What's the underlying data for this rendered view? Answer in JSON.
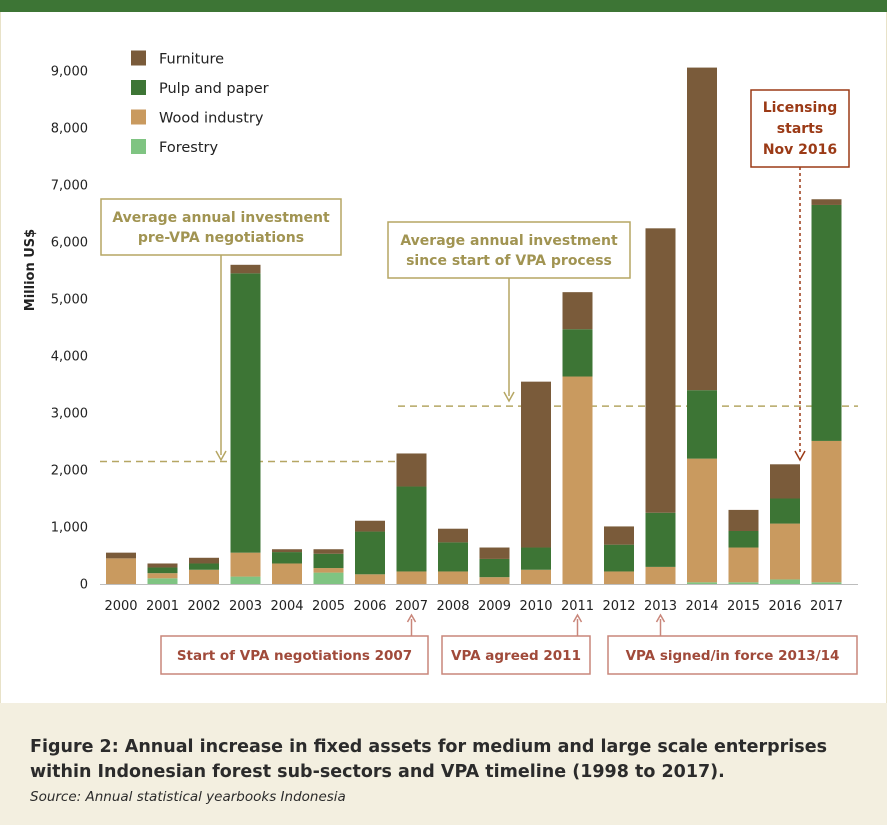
{
  "colors": {
    "furniture": "#7a5b3a",
    "pulp_and_paper": "#3d7535",
    "wood_industry": "#c99a5f",
    "forestry": "#7fc482",
    "olive": "#b5a663",
    "red": "#9b3a16",
    "pink": "#c9867a",
    "top_bar": "#3d7535",
    "caption_bg": "#f3efe0"
  },
  "chart_data": {
    "type": "bar",
    "stacked": true,
    "categories": [
      "2000",
      "2001",
      "2002",
      "2003",
      "2004",
      "2005",
      "2006",
      "2007",
      "2008",
      "2009",
      "2010",
      "2011",
      "2012",
      "2013",
      "2014",
      "2015",
      "2016",
      "2017"
    ],
    "series": [
      {
        "name": "Forestry",
        "values": [
          0,
          100,
          0,
          130,
          0,
          200,
          0,
          0,
          0,
          0,
          0,
          0,
          0,
          0,
          30,
          30,
          80,
          30
        ]
      },
      {
        "name": "Wood industry",
        "values": [
          450,
          90,
          250,
          420,
          360,
          80,
          170,
          220,
          220,
          120,
          250,
          3640,
          220,
          300,
          2170,
          610,
          980,
          2480
        ]
      },
      {
        "name": "Pulp and paper",
        "values": [
          0,
          100,
          110,
          4900,
          200,
          250,
          750,
          1490,
          510,
          320,
          390,
          830,
          470,
          950,
          1200,
          290,
          440,
          4140
        ]
      },
      {
        "name": "Furniture",
        "values": [
          100,
          70,
          100,
          150,
          50,
          80,
          190,
          580,
          240,
          200,
          2910,
          650,
          320,
          4990,
          5660,
          370,
          600,
          100
        ]
      }
    ],
    "xlabel": "",
    "ylabel": "Million US$",
    "ylim": [
      0,
      9000
    ],
    "yticks": [
      "0",
      "1,000",
      "2,000",
      "3,000",
      "4,000",
      "5,000",
      "6,000",
      "7,000",
      "8,000",
      "9,000"
    ],
    "legend": {
      "placement": "top-left",
      "entries": [
        "Furniture",
        "Pulp and paper",
        "Wood industry",
        "Forestry"
      ]
    },
    "reference_lines": [
      {
        "value": 2150,
        "from": "2000",
        "to": "2007",
        "label_lines": [
          "Average annual investment",
          "pre-VPA negotiations"
        ]
      },
      {
        "value": 3120,
        "from": "2007",
        "to": "2017",
        "label_lines": [
          "Average annual investment",
          "since start of VPA process"
        ]
      }
    ],
    "grid": false
  },
  "annotations": {
    "licensing_lines": [
      "Licensing",
      "starts",
      "Nov 2016"
    ],
    "timeline": [
      {
        "label": "Start of VPA negotiations 2007",
        "year": "2007"
      },
      {
        "label": "VPA agreed 2011",
        "year": "2011"
      },
      {
        "label": "VPA signed/in force 2013/14",
        "year": "2013"
      }
    ]
  },
  "caption": {
    "title": "Figure 2: Annual increase in fixed assets for medium and large scale enterprises within Indonesian forest sub-sectors and VPA timeline (1998 to 2017).",
    "source": "Source: Annual statistical yearbooks Indonesia"
  }
}
